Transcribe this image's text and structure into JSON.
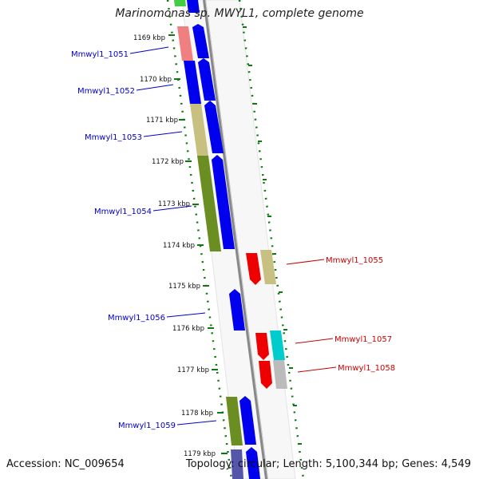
{
  "title": "Marinomonas sp. MWYL1, complete genome",
  "footer": {
    "accession": "Accession: NC_009654",
    "topology": "Topology: circular;",
    "length": "Length: 5,100,344 bp;",
    "genes": "Genes: 4,549"
  },
  "colors": {
    "plus_cds": "#0000ee",
    "minus_cds": "#ee0000",
    "plus_label": "#0000cc",
    "minus_label": "#cc0000",
    "tick": "#117711",
    "backbone": "#888888"
  },
  "scale_ticks": [
    "1169 kbp",
    "1170 kbp",
    "1171 kbp",
    "1172 kbp",
    "1173 kbp",
    "1174 kbp",
    "1175 kbp",
    "1176 kbp",
    "1177 kbp",
    "1178 kbp",
    "1179 kbp"
  ],
  "genes": [
    {
      "label": "Mmwyl1_1051",
      "strand": "plus"
    },
    {
      "label": "Mmwyl1_1052",
      "strand": "plus"
    },
    {
      "label": "Mmwyl1_1053",
      "strand": "plus"
    },
    {
      "label": "Mmwyl1_1054",
      "strand": "plus"
    },
    {
      "label": "Mmwyl1_1055",
      "strand": "minus"
    },
    {
      "label": "Mmwyl1_1056",
      "strand": "plus"
    },
    {
      "label": "Mmwyl1_1057",
      "strand": "minus"
    },
    {
      "label": "Mmwyl1_1058",
      "strand": "minus"
    },
    {
      "label": "Mmwyl1_1059",
      "strand": "plus"
    }
  ]
}
